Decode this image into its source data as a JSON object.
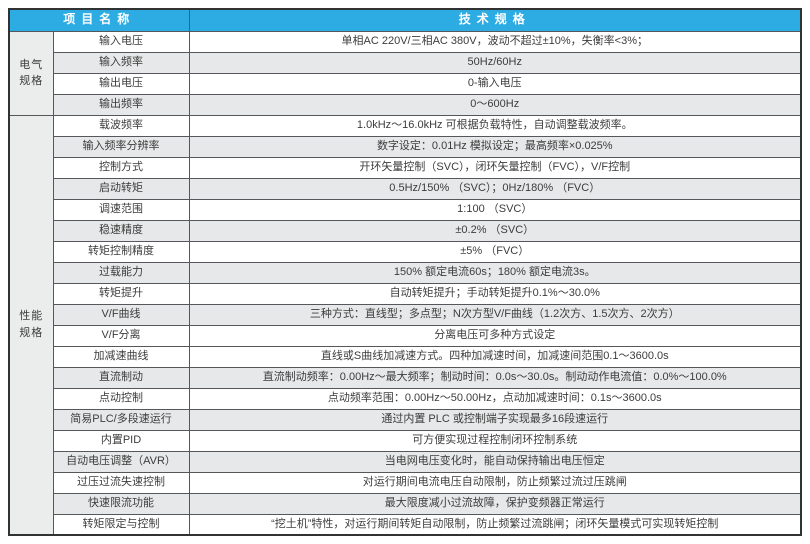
{
  "colors": {
    "header_bg": "#2dace3",
    "header_fg": "#ffffff",
    "row_shade": "#e7e8e9",
    "group_bg": "#ebecec",
    "border": "#55575a"
  },
  "table": {
    "header": {
      "item_column": "项目名称",
      "spec_column": "技术规格"
    },
    "groups": [
      {
        "id": "electrical-specs",
        "label": "电气规格",
        "rows": [
          {
            "item": "输入电压",
            "spec": "单相AC 220V/三相AC 380V，波动不超过±10%，失衡率<3%；",
            "shade": false
          },
          {
            "item": "输入频率",
            "spec": "50Hz/60Hz",
            "shade": true
          },
          {
            "item": "输出电压",
            "spec": "0-输入电压",
            "shade": false
          },
          {
            "item": "输出频率",
            "spec": "0～600Hz",
            "shade": true
          }
        ]
      },
      {
        "id": "performance-specs",
        "label": "性能规格",
        "rows": [
          {
            "item": "载波频率",
            "spec": "1.0kHz～16.0kHz 可根据负载特性，自动调整载波频率。",
            "shade": false
          },
          {
            "item": "输入频率分辨率",
            "spec": "数字设定：0.01Hz 模拟设定；最高频率×0.025%",
            "shade": true
          },
          {
            "item": "控制方式",
            "spec": "开环矢量控制（SVC），闭环矢量控制（FVC），V/F控制",
            "shade": false
          },
          {
            "item": "启动转矩",
            "spec": "0.5Hz/150% （SVC）；0Hz/180% （FVC）",
            "shade": true
          },
          {
            "item": "调速范围",
            "spec": "1:100 （SVC）",
            "shade": false
          },
          {
            "item": "稳速精度",
            "spec": "±0.2% （SVC）",
            "shade": true
          },
          {
            "item": "转矩控制精度",
            "spec": "±5% （FVC）",
            "shade": false
          },
          {
            "item": "过载能力",
            "spec": "150% 额定电流60s；180% 额定电流3s。",
            "shade": true
          },
          {
            "item": "转矩提升",
            "spec": "自动转矩提升；手动转矩提升0.1%～30.0%",
            "shade": false
          },
          {
            "item": "V/F曲线",
            "spec": "三种方式：直线型；多点型；N次方型V/F曲线（1.2次方、1.5次方、2次方）",
            "shade": true
          },
          {
            "item": "V/F分离",
            "spec": "分离电压可多种方式设定",
            "shade": false
          },
          {
            "item": "加减速曲线",
            "spec": "直线或S曲线加减速方式。四种加减速时间，加减速间范围0.1～3600.0s",
            "shade": false
          },
          {
            "item": "直流制动",
            "spec": "直流制动频率：0.00Hz～最大频率；制动时间：0.0s～30.0s。制动动作电流值：0.0%～100.0%",
            "shade": true
          },
          {
            "item": "点动控制",
            "spec": "点动频率范围：0.00Hz～50.00Hz，点动加减速时间：0.1s～3600.0s",
            "shade": false
          },
          {
            "item": "简易PLC/多段速运行",
            "spec": "通过内置 PLC 或控制端子实现最多16段速运行",
            "shade": true
          },
          {
            "item": "内置PID",
            "spec": "可方便实现过程控制闭环控制系统",
            "shade": false
          },
          {
            "item": "自动电压调整（AVR）",
            "spec": "当电网电压变化时，能自动保持输出电压恒定",
            "shade": true
          },
          {
            "item": "过压过流失速控制",
            "spec": "对运行期间电流电压自动限制，防止频繁过流过压跳闸",
            "shade": false
          },
          {
            "item": "快速限流功能",
            "spec": "最大限度减小过流故障，保护变频器正常运行",
            "shade": true
          },
          {
            "item": "转矩限定与控制",
            "spec": "“挖土机”特性，对运行期间转矩自动限制，防止频繁过流跳闸；闭环矢量模式可实现转矩控制",
            "shade": false
          }
        ]
      }
    ]
  }
}
